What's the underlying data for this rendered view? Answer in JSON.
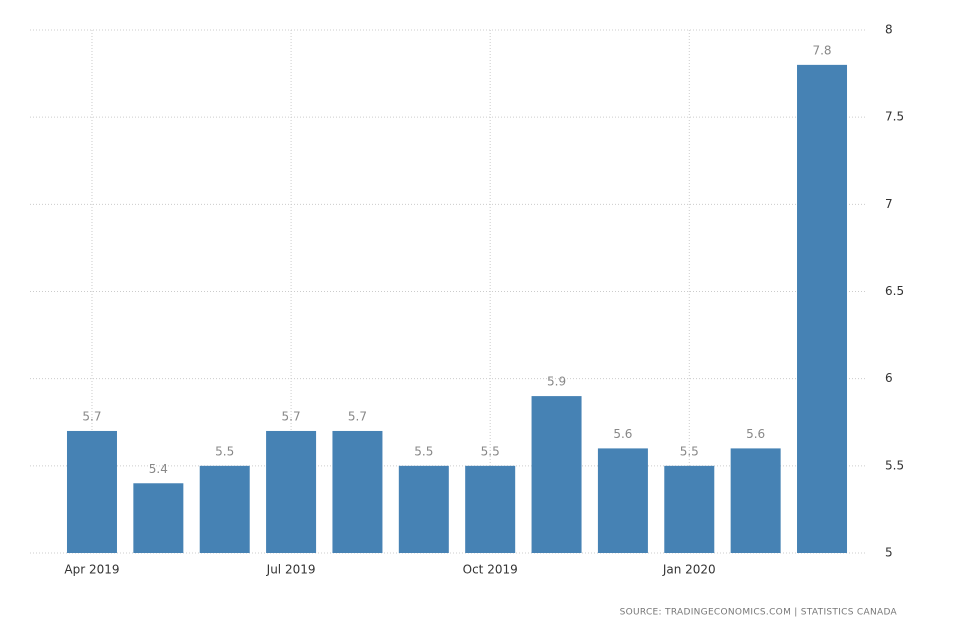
{
  "chart_data": {
    "type": "bar",
    "categories": [
      "Apr 2019",
      null,
      null,
      "Jul 2019",
      null,
      null,
      "Oct 2019",
      null,
      null,
      "Jan 2020",
      null,
      null
    ],
    "values": [
      5.7,
      5.4,
      5.5,
      5.7,
      5.7,
      5.5,
      5.5,
      5.9,
      5.6,
      5.5,
      5.6,
      7.8
    ],
    "color": "#4682b4",
    "ylim": [
      5,
      8
    ],
    "yticks": [
      5,
      5.5,
      6,
      6.5,
      7,
      7.5,
      8
    ],
    "grid": true,
    "source": "SOURCE: TRADINGECONOMICS.COM | STATISTICS CANADA"
  }
}
